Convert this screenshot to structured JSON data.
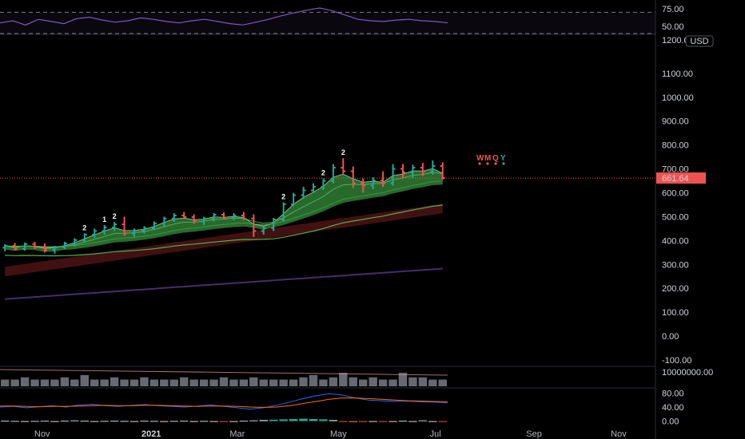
{
  "colors": {
    "background": "#000000",
    "up": "#26a69a",
    "down": "#ef5350",
    "rsi_line": "#7e57c2",
    "ribbon_green": "#2e7d32",
    "ribbon_red": "#4a1214",
    "long_ma": "#4a2b6b",
    "price_line": "#ef5350",
    "volume": "#787b86"
  },
  "chart_data": [
    {
      "type": "line",
      "panel": "rsi",
      "ylim": [
        40,
        85
      ],
      "y_ticks": [
        "75.00",
        "50.00"
      ],
      "bands": [
        70,
        30
      ],
      "series": [
        {
          "values": [
            55,
            58,
            52,
            60,
            57,
            54,
            61,
            63,
            59,
            56,
            58,
            62,
            60,
            57,
            55,
            58,
            60,
            57,
            54,
            52,
            56,
            60,
            65,
            69,
            73,
            76,
            72,
            66,
            60,
            58,
            57,
            59,
            60,
            58,
            57,
            55
          ]
        }
      ]
    },
    {
      "type": "bar",
      "panel": "price",
      "ylim": [
        -120,
        1250
      ],
      "currency": "USD",
      "y_ticks": [
        "1200.00",
        "1100.00",
        "1000.00",
        "900.00",
        "800.00",
        "700.00",
        "600.00",
        "500.00",
        "400.00",
        "300.00",
        "200.00",
        "100.00",
        "0.00",
        "-100.00"
      ],
      "last_price_label": "661.64",
      "last_price": 661.64,
      "legend_letters": [
        "W",
        "M",
        "Q",
        "Y"
      ],
      "ohlc": [
        [
          370,
          385,
          355,
          378
        ],
        [
          378,
          390,
          360,
          365
        ],
        [
          365,
          392,
          358,
          385
        ],
        [
          385,
          395,
          365,
          372
        ],
        [
          372,
          388,
          350,
          360
        ],
        [
          360,
          378,
          345,
          372
        ],
        [
          372,
          395,
          365,
          388
        ],
        [
          388,
          410,
          375,
          402
        ],
        [
          402,
          430,
          392,
          425
        ],
        [
          425,
          450,
          410,
          440
        ],
        [
          440,
          465,
          425,
          455
        ],
        [
          455,
          478,
          440,
          468
        ],
        [
          468,
          500,
          420,
          430
        ],
        [
          430,
          450,
          415,
          442
        ],
        [
          442,
          460,
          430,
          452
        ],
        [
          452,
          480,
          445,
          472
        ],
        [
          472,
          500,
          460,
          492
        ],
        [
          492,
          515,
          478,
          505
        ],
        [
          505,
          520,
          490,
          498
        ],
        [
          498,
          510,
          470,
          480
        ],
        [
          480,
          500,
          465,
          492
        ],
        [
          492,
          515,
          480,
          508
        ],
        [
          508,
          518,
          488,
          496
        ],
        [
          496,
          515,
          485,
          505
        ],
        [
          505,
          520,
          485,
          492
        ],
        [
          492,
          510,
          415,
          440
        ],
        [
          440,
          460,
          425,
          452
        ],
        [
          452,
          495,
          440,
          488
        ],
        [
          488,
          560,
          480,
          552
        ],
        [
          552,
          600,
          545,
          590
        ],
        [
          590,
          625,
          575,
          610
        ],
        [
          610,
          640,
          598,
          625
        ],
        [
          625,
          660,
          612,
          650
        ],
        [
          650,
          720,
          640,
          705
        ],
        [
          705,
          745,
          680,
          690
        ],
        [
          690,
          710,
          620,
          640
        ],
        [
          640,
          660,
          600,
          630
        ],
        [
          630,
          665,
          615,
          652
        ],
        [
          652,
          690,
          625,
          640
        ],
        [
          640,
          720,
          630,
          700
        ],
        [
          700,
          720,
          660,
          685
        ],
        [
          685,
          718,
          660,
          705
        ],
        [
          705,
          725,
          670,
          690
        ],
        [
          690,
          735,
          675,
          712
        ],
        [
          712,
          728,
          655,
          662
        ]
      ],
      "markers": [
        {
          "index": 8,
          "label": "2"
        },
        {
          "index": 10,
          "label": "1"
        },
        {
          "index": 11,
          "label": "2"
        },
        {
          "index": 28,
          "label": "2"
        },
        {
          "index": 32,
          "label": "2"
        },
        {
          "index": 34,
          "label": "2"
        }
      ]
    },
    {
      "type": "bar",
      "panel": "volume",
      "y_ticks": [
        "10000000.00"
      ],
      "values": [
        3,
        3,
        4,
        3,
        3,
        3,
        4,
        3,
        5,
        3,
        3,
        4,
        3,
        3,
        4,
        3,
        3,
        3,
        4,
        3,
        3,
        3,
        4,
        3,
        3,
        4,
        3,
        3,
        3,
        3,
        4,
        5,
        3,
        4,
        6,
        4,
        3,
        4,
        3,
        3,
        6,
        4,
        4,
        3,
        3
      ]
    },
    {
      "type": "bar",
      "panel": "oscillator",
      "ylim": [
        -10,
        90
      ],
      "y_ticks": [
        "80.00",
        "40.00",
        "0.00"
      ],
      "values": [
        1,
        0.5,
        -1,
        0.5,
        1,
        -0.5,
        1,
        2,
        1,
        -1,
        0.5,
        1,
        0.5,
        -0.5,
        1,
        0.5,
        -0.5,
        0.5,
        1,
        -1,
        0.5,
        -1,
        -2,
        -1,
        1,
        2,
        3,
        4,
        5,
        6,
        7,
        6,
        5,
        3,
        -2,
        -3,
        -2,
        -1,
        -2,
        -1,
        1,
        -1,
        2,
        -1,
        -2
      ],
      "series": [
        {
          "values": [
            40,
            42,
            38,
            41,
            44,
            40,
            46,
            48,
            44,
            42,
            45,
            47,
            44,
            42,
            40,
            43,
            46,
            42,
            38,
            34,
            38,
            45,
            54,
            64,
            72,
            78,
            74,
            66,
            60,
            58,
            56,
            57,
            55,
            54,
            52
          ]
        },
        {
          "values": [
            43,
            43,
            42,
            41,
            42,
            42,
            43,
            44,
            45,
            44,
            44,
            45,
            45,
            44,
            43,
            42,
            43,
            43,
            42,
            40,
            39,
            40,
            44,
            50,
            56,
            62,
            66,
            66,
            64,
            62,
            60,
            58,
            57,
            56,
            55
          ]
        }
      ]
    }
  ],
  "x_axis": {
    "labels": [
      {
        "text": "Nov",
        "bold": false,
        "pos": 0.0565
      },
      {
        "text": "2021",
        "bold": true,
        "pos": 0.203
      },
      {
        "text": "Mar",
        "bold": false,
        "pos": 0.3185
      },
      {
        "text": "May",
        "bold": false,
        "pos": 0.4543
      },
      {
        "text": "Jul",
        "bold": false,
        "pos": 0.5844
      },
      {
        "text": "Sep",
        "bold": false,
        "pos": 0.7168
      },
      {
        "text": "Nov",
        "bold": false,
        "pos": 0.8304
      }
    ]
  }
}
